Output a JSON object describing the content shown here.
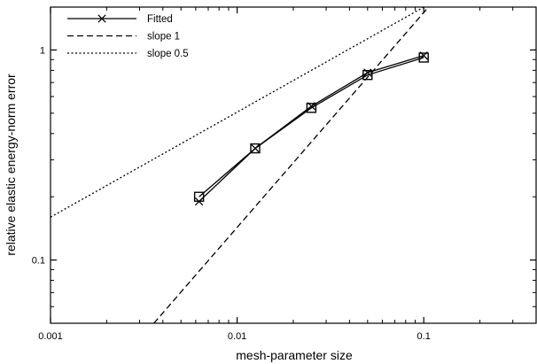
{
  "chart_data": {
    "type": "line",
    "xscale": "log",
    "yscale": "log",
    "xlim": [
      0.001,
      0.4
    ],
    "ylim": [
      0.05,
      1.6
    ],
    "xlabel": "mesh-parameter size",
    "ylabel": "relative elastic energy-norm error",
    "x_ticks": [
      {
        "value": 0.001,
        "label": "0.001"
      },
      {
        "value": 0.01,
        "label": "0.01"
      },
      {
        "value": 0.1,
        "label": "0.1"
      }
    ],
    "y_ticks": [
      {
        "value": 0.1,
        "label": "0.1"
      },
      {
        "value": 1,
        "label": "1"
      }
    ],
    "grid": false,
    "legend_position": "top-left",
    "series": [
      {
        "name": "Fitted",
        "style": "solid",
        "marker": "x",
        "color": "#000000",
        "x": [
          0.00625,
          0.0125,
          0.025,
          0.05,
          0.1
        ],
        "y": [
          0.19,
          0.34,
          0.54,
          0.78,
          0.94
        ]
      },
      {
        "style": "solid",
        "marker": "square",
        "color": "#000000",
        "x": [
          0.00625,
          0.0125,
          0.025,
          0.05,
          0.1
        ],
        "y": [
          0.2,
          0.34,
          0.53,
          0.76,
          0.92
        ]
      },
      {
        "name": "slope 1",
        "style": "dashed",
        "color": "#000000",
        "x": [
          0.00358,
          0.106
        ],
        "y": [
          0.05,
          1.6
        ]
      },
      {
        "name": "slope 0.5",
        "style": "dotted",
        "color": "#000000",
        "x": [
          0.001,
          0.1
        ],
        "y": [
          0.16,
          1.6
        ]
      }
    ]
  }
}
